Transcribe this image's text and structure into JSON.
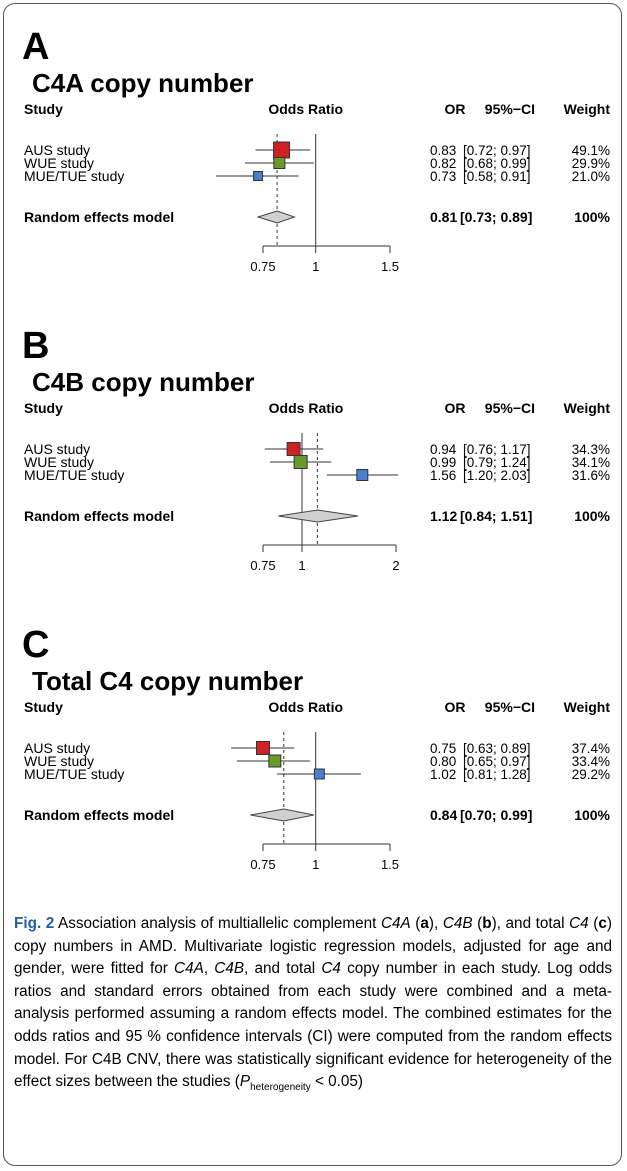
{
  "panels": [
    {
      "letter": "A",
      "title": "C4A copy number",
      "headers": {
        "study": "Study",
        "odds_ratio": "Odds Ratio",
        "or": "OR",
        "ci": "95%−CI",
        "weight": "Weight"
      },
      "axis_ticks": [
        "0.75",
        "1",
        "1.5"
      ],
      "rows": [
        {
          "study": "AUS study",
          "or": 0.83,
          "lo": 0.72,
          "hi": 0.97,
          "or_text": "0.83",
          "ci_text": "[0.72; 0.97]",
          "weight": "49.1%",
          "box": 16
        },
        {
          "study": "WUE study",
          "or": 0.82,
          "lo": 0.68,
          "hi": 0.99,
          "or_text": "0.82",
          "ci_text": "[0.68; 0.99]",
          "weight": "29.9%",
          "box": 11
        },
        {
          "study": "MUE/TUE study",
          "or": 0.73,
          "lo": 0.58,
          "hi": 0.91,
          "or_text": "0.73",
          "ci_text": "[0.58; 0.91]",
          "weight": "21.0%",
          "box": 9
        }
      ],
      "summary": {
        "label": "Random effects model",
        "or": 0.81,
        "lo": 0.73,
        "hi": 0.89,
        "or_text": "0.81",
        "ci_text": "[0.73; 0.89]",
        "weight": "100%"
      }
    },
    {
      "letter": "B",
      "title": "C4B copy number",
      "headers": {
        "study": "Study",
        "odds_ratio": "Odds Ratio",
        "or": "OR",
        "ci": "95%−CI",
        "weight": "Weight"
      },
      "axis_ticks": [
        "0.75",
        "1",
        "2"
      ],
      "rows": [
        {
          "study": "AUS study",
          "or": 0.94,
          "lo": 0.76,
          "hi": 1.17,
          "or_text": "0.94",
          "ci_text": "[0.76; 1.17]",
          "weight": "34.3%",
          "box": 13
        },
        {
          "study": "WUE study",
          "or": 0.99,
          "lo": 0.79,
          "hi": 1.24,
          "or_text": "0.99",
          "ci_text": "[0.79; 1.24]",
          "weight": "34.1%",
          "box": 13
        },
        {
          "study": "MUE/TUE study",
          "or": 1.56,
          "lo": 1.2,
          "hi": 2.03,
          "or_text": "1.56",
          "ci_text": "[1.20; 2.03]",
          "weight": "31.6%",
          "box": 11
        }
      ],
      "summary": {
        "label": "Random effects model",
        "or": 1.12,
        "lo": 0.84,
        "hi": 1.51,
        "or_text": "1.12",
        "ci_text": "[0.84; 1.51]",
        "weight": "100%"
      }
    },
    {
      "letter": "C",
      "title": "Total C4 copy number",
      "headers": {
        "study": "Study",
        "odds_ratio": "Odds Ratio",
        "or": "OR",
        "ci": "95%−CI",
        "weight": "Weight"
      },
      "axis_ticks": [
        "0.75",
        "1",
        "1.5"
      ],
      "rows": [
        {
          "study": "AUS study",
          "or": 0.75,
          "lo": 0.63,
          "hi": 0.89,
          "or_text": "0.75",
          "ci_text": "[0.63; 0.89]",
          "weight": "37.4%",
          "box": 13
        },
        {
          "study": "WUE study",
          "or": 0.8,
          "lo": 0.65,
          "hi": 0.97,
          "or_text": "0.80",
          "ci_text": "[0.65; 0.97]",
          "weight": "33.4%",
          "box": 12
        },
        {
          "study": "MUE/TUE study",
          "or": 1.02,
          "lo": 0.81,
          "hi": 1.28,
          "or_text": "1.02",
          "ci_text": "[0.81; 1.28]",
          "weight": "29.2%",
          "box": 10
        }
      ],
      "summary": {
        "label": "Random effects model",
        "or": 0.84,
        "lo": 0.7,
        "hi": 0.99,
        "or_text": "0.84",
        "ci_text": "[0.70; 0.99]",
        "weight": "100%"
      }
    }
  ],
  "colors": {
    "aus": "#cc2222",
    "wue": "#6a9a2a",
    "mue": "#4a7fd0",
    "diamond": "#d0d0d0"
  },
  "caption": {
    "label": "Fig. 2",
    "text": "Association analysis of multiallelic complement C4A (a), C4B (b), and total C4 (c) copy numbers in AMD. Multivariate logistic regression models, adjusted for age and gender, were fitted for C4A, C4B, and total C4 copy number in each study. Log odds ratios and standard errors obtained from each study were combined and a meta-analysis performed assuming a random effects model. The combined estimates for the odds ratios and 95 % confidence intervals (CI) were computed from the random effects model. For C4B CNV, there was statistically significant evidence for heterogeneity of the effect sizes between the studies (P heterogeneity < 0.05)"
  },
  "chart_data": [
    {
      "type": "scatter",
      "title": "C4A copy number",
      "xlabel": "Odds Ratio",
      "x_scale": "log",
      "x_ticks": [
        0.75,
        1,
        1.5
      ],
      "series": [
        {
          "name": "AUS study",
          "or": 0.83,
          "ci": [
            0.72,
            0.97
          ],
          "weight": 49.1
        },
        {
          "name": "WUE study",
          "or": 0.82,
          "ci": [
            0.68,
            0.99
          ],
          "weight": 29.9
        },
        {
          "name": "MUE/TUE study",
          "or": 0.73,
          "ci": [
            0.58,
            0.91
          ],
          "weight": 21.0
        },
        {
          "name": "Random effects model",
          "or": 0.81,
          "ci": [
            0.73,
            0.89
          ],
          "weight": 100
        }
      ]
    },
    {
      "type": "scatter",
      "title": "C4B copy number",
      "xlabel": "Odds Ratio",
      "x_scale": "log",
      "x_ticks": [
        0.75,
        1,
        2
      ],
      "series": [
        {
          "name": "AUS study",
          "or": 0.94,
          "ci": [
            0.76,
            1.17
          ],
          "weight": 34.3
        },
        {
          "name": "WUE study",
          "or": 0.99,
          "ci": [
            0.79,
            1.24
          ],
          "weight": 34.1
        },
        {
          "name": "MUE/TUE study",
          "or": 1.56,
          "ci": [
            1.2,
            2.03
          ],
          "weight": 31.6
        },
        {
          "name": "Random effects model",
          "or": 1.12,
          "ci": [
            0.84,
            1.51
          ],
          "weight": 100
        }
      ]
    },
    {
      "type": "scatter",
      "title": "Total C4 copy number",
      "xlabel": "Odds Ratio",
      "x_scale": "log",
      "x_ticks": [
        0.75,
        1,
        1.5
      ],
      "series": [
        {
          "name": "AUS study",
          "or": 0.75,
          "ci": [
            0.63,
            0.89
          ],
          "weight": 37.4
        },
        {
          "name": "WUE study",
          "or": 0.8,
          "ci": [
            0.65,
            0.97
          ],
          "weight": 33.4
        },
        {
          "name": "MUE/TUE study",
          "or": 1.02,
          "ci": [
            0.81,
            1.28
          ],
          "weight": 29.2
        },
        {
          "name": "Random effects model",
          "or": 0.84,
          "ci": [
            0.7,
            0.99
          ],
          "weight": 100
        }
      ]
    }
  ]
}
